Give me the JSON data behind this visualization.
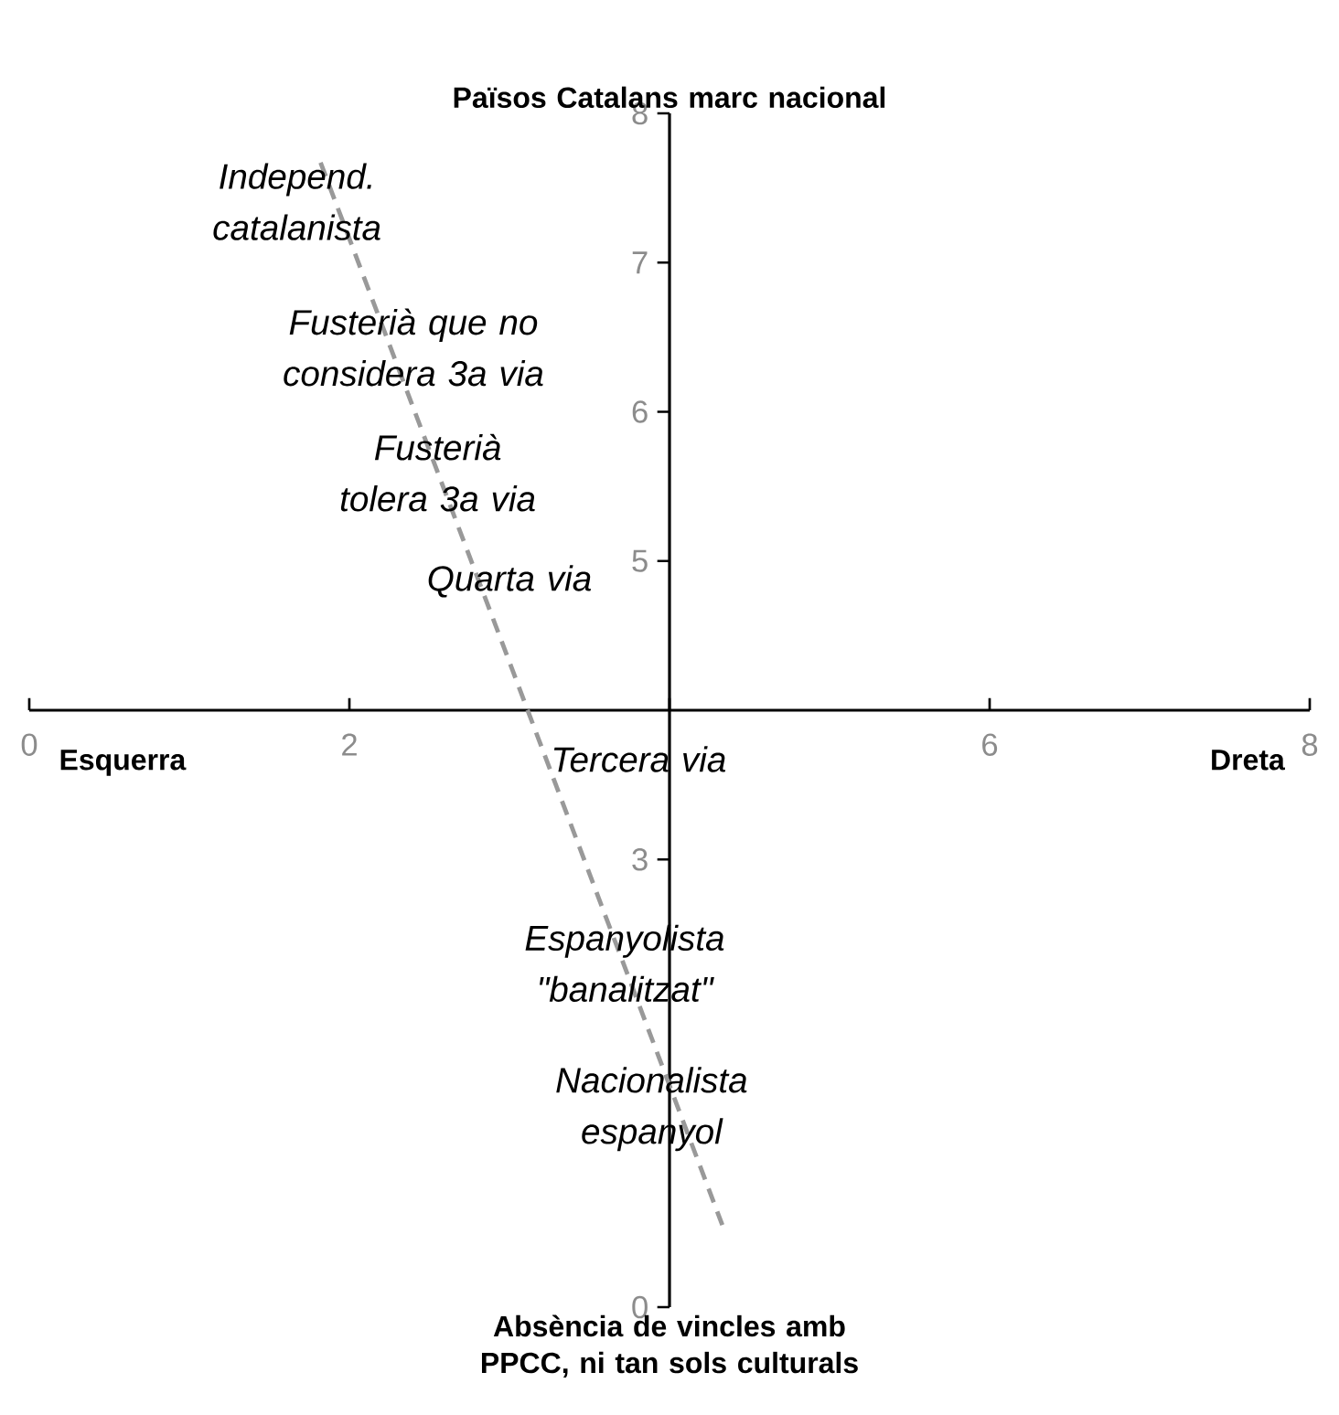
{
  "chart_data": {
    "type": "line",
    "xlim": [
      0,
      8
    ],
    "ylim": [
      0,
      8
    ],
    "xticks": [
      0,
      2,
      {
        "value": 4,
        "label": null
      },
      6,
      8
    ],
    "yticks": [
      0,
      3,
      5,
      6,
      7,
      8
    ],
    "series": [
      {
        "x": [
          1.82,
          4.33
        ],
        "values": [
          7.67,
          0.55
        ],
        "color": "#999999",
        "line_style": "dashed",
        "marker": "none"
      }
    ],
    "annotations": [
      "Països Catalans marc nacional",
      "Absència de  vincles amb PPCC, ni tan sols culturals",
      "Esquerra",
      "Dreta",
      "Independ. catalanista",
      "Fusterià que no considera 3a via",
      "Fusterià tolera 3a via",
      "Quarta via",
      "Tercera via",
      "Espanyolista \"banalitzat\"",
      "Nacionalista espanyol"
    ]
  }
}
